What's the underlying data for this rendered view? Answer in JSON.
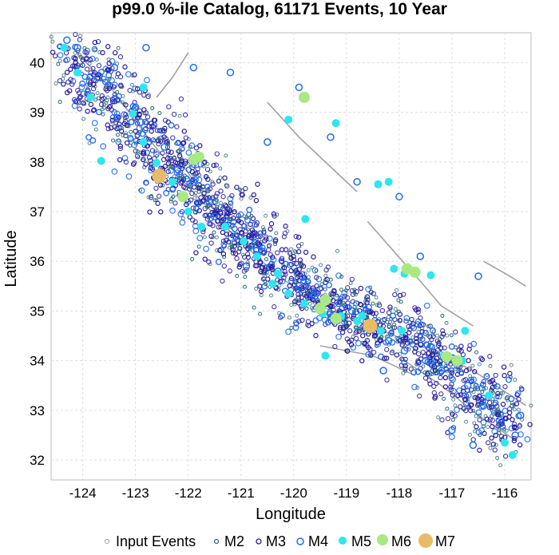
{
  "chart_data": {
    "type": "scatter",
    "title": "p99.0 %-ile Catalog, 61171 Events, 10 Year",
    "xlabel": "Longitude",
    "ylabel": "Latitude",
    "xlim": [
      -124.6,
      -115.5
    ],
    "ylim": [
      31.6,
      40.6
    ],
    "xticks": [
      "-124",
      "-123",
      "-122",
      "-121",
      "-120",
      "-119",
      "-118",
      "-117",
      "-116"
    ],
    "yticks": [
      "32",
      "33",
      "34",
      "35",
      "36",
      "37",
      "38",
      "39",
      "40"
    ],
    "grid": true,
    "legend_position": "bottom",
    "colors": {
      "input": "#a0a0a0",
      "m2": "#2a6f7a",
      "m3": "#2a1d9e",
      "m4": "#1e6cf0",
      "m5": "#2ee6ee",
      "m6": "#a9e884",
      "m7": "#e8bc66",
      "fault": "#8a8a8a"
    },
    "series": [
      {
        "name": "M7",
        "points": [
          [
            -122.55,
            37.72
          ],
          [
            -118.55,
            34.7
          ]
        ]
      },
      {
        "name": "M6",
        "points": [
          [
            -121.9,
            38.05
          ],
          [
            -121.8,
            38.1
          ],
          [
            -122.1,
            37.3
          ],
          [
            -119.8,
            39.3
          ],
          [
            -117.85,
            35.85
          ],
          [
            -117.7,
            35.78
          ],
          [
            -119.2,
            34.85
          ],
          [
            -119.5,
            35.05
          ],
          [
            -116.9,
            34.0
          ],
          [
            -117.1,
            34.08
          ],
          [
            -119.4,
            35.22
          ]
        ]
      },
      {
        "name": "M5",
        "points": [
          [
            -124.35,
            40.3
          ],
          [
            -123.85,
            39.3
          ],
          [
            -123.65,
            38.02
          ],
          [
            -123.05,
            38.97
          ],
          [
            -122.85,
            38.4
          ],
          [
            -122.6,
            37.98
          ],
          [
            -122.3,
            37.6
          ],
          [
            -122.0,
            37.0
          ],
          [
            -121.75,
            36.7
          ],
          [
            -121.3,
            36.7
          ],
          [
            -120.95,
            36.4
          ],
          [
            -120.4,
            35.55
          ],
          [
            -120.1,
            35.35
          ],
          [
            -119.8,
            35.15
          ],
          [
            -119.45,
            34.95
          ],
          [
            -119.1,
            34.9
          ],
          [
            -118.8,
            34.8
          ],
          [
            -118.35,
            34.6
          ],
          [
            -119.78,
            36.85
          ],
          [
            -119.2,
            38.78
          ],
          [
            -120.1,
            38.85
          ],
          [
            -118.1,
            35.85
          ],
          [
            -117.9,
            35.75
          ],
          [
            -117.4,
            35.72
          ],
          [
            -118.4,
            37.55
          ],
          [
            -118.2,
            37.6
          ],
          [
            -117.15,
            34.1
          ],
          [
            -116.8,
            34.0
          ],
          [
            -116.3,
            33.3
          ],
          [
            -116.0,
            32.35
          ],
          [
            -115.85,
            32.1
          ],
          [
            -116.75,
            34.6
          ],
          [
            -119.4,
            34.1
          ],
          [
            -122.85,
            39.5
          ],
          [
            -124.1,
            39.8
          ],
          [
            -120.7,
            36.1
          ],
          [
            -120.3,
            35.75
          ],
          [
            -118.7,
            34.9
          ],
          [
            -117.95,
            34.6
          ]
        ]
      },
      {
        "name": "M4",
        "points": [
          [
            -124.3,
            40.45
          ],
          [
            -124.1,
            40.3
          ],
          [
            -123.7,
            39.7
          ],
          [
            -123.0,
            39.1
          ],
          [
            -122.9,
            38.8
          ],
          [
            -122.45,
            38.3
          ],
          [
            -122.2,
            37.85
          ],
          [
            -121.9,
            37.6
          ],
          [
            -121.6,
            37.2
          ],
          [
            -121.5,
            36.9
          ],
          [
            -121.1,
            36.5
          ],
          [
            -120.6,
            36.2
          ],
          [
            -120.3,
            35.8
          ],
          [
            -119.9,
            35.5
          ],
          [
            -119.6,
            35.3
          ],
          [
            -118.9,
            35.0
          ],
          [
            -118.2,
            34.4
          ],
          [
            -117.9,
            34.2
          ],
          [
            -117.5,
            34.0
          ],
          [
            -117.2,
            33.8
          ],
          [
            -116.7,
            33.5
          ],
          [
            -116.4,
            33.1
          ],
          [
            -116.1,
            32.8
          ],
          [
            -115.8,
            32.5
          ],
          [
            -115.7,
            32.9
          ],
          [
            -116.5,
            35.7
          ],
          [
            -117.6,
            36.1
          ],
          [
            -118.0,
            37.3
          ],
          [
            -118.8,
            37.6
          ],
          [
            -119.3,
            38.5
          ],
          [
            -119.9,
            39.5
          ],
          [
            -120.5,
            38.4
          ],
          [
            -121.2,
            39.8
          ],
          [
            -121.9,
            39.9
          ],
          [
            -122.8,
            40.3
          ],
          [
            -123.4,
            39.9
          ],
          [
            -120.9,
            35.9
          ],
          [
            -118.3,
            33.8
          ],
          [
            -117.0,
            32.6
          ],
          [
            -116.6,
            32.3
          ]
        ]
      }
    ]
  },
  "legend": {
    "items": [
      "Input Events",
      "M2",
      "M3",
      "M4",
      "M5",
      "M6",
      "M7"
    ]
  }
}
